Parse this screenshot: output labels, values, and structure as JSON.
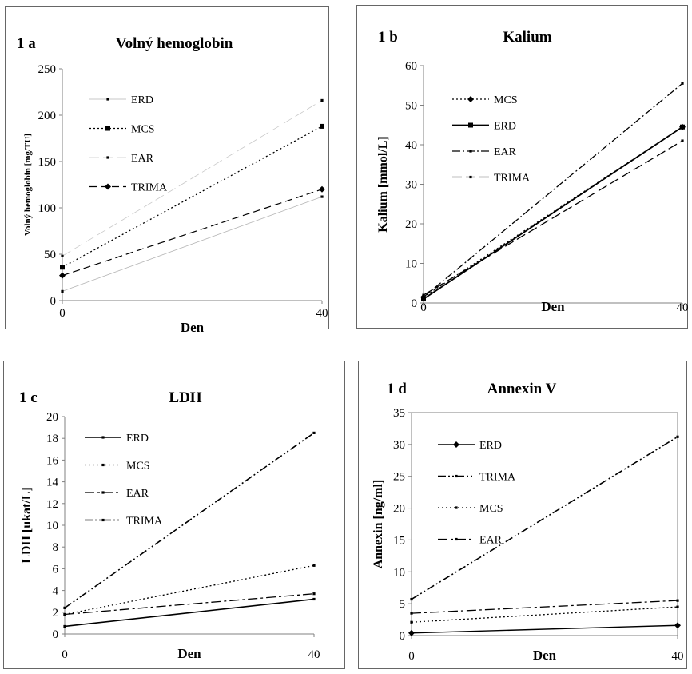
{
  "chart_data": [
    {
      "type": "line",
      "panel_label": "1 a",
      "title": "Volný hemoglobin",
      "xlabel": "Den",
      "ylabel": "Volný hemoglobin [mg/TU]",
      "x": [
        0,
        40
      ],
      "xticks": [
        "0",
        "40"
      ],
      "ylim": [
        0,
        250
      ],
      "yticks": [
        0,
        50,
        100,
        150,
        200,
        250
      ],
      "grid": false,
      "legend_position": "top-left",
      "series": [
        {
          "name": "ERD",
          "values": [
            10,
            112
          ],
          "color": "#b5b5b5"
        },
        {
          "name": "MCS",
          "values": [
            36,
            188
          ],
          "color": "#000000"
        },
        {
          "name": "EAR",
          "values": [
            48,
            216
          ],
          "color": "#c8c8c8"
        },
        {
          "name": "TRIMA",
          "values": [
            27,
            120
          ],
          "color": "#000000"
        }
      ]
    },
    {
      "type": "line",
      "panel_label": "1 b",
      "title": "Kalium",
      "xlabel": "Den",
      "ylabel": "Kalium [mmol/L]",
      "x": [
        0,
        40
      ],
      "xticks": [
        "0",
        "40"
      ],
      "ylim": [
        0,
        60
      ],
      "yticks": [
        0,
        10,
        20,
        30,
        40,
        50,
        60
      ],
      "grid": false,
      "legend_position": "top-left",
      "series": [
        {
          "name": "MCS",
          "values": [
            1.5,
            44.5
          ],
          "color": "#000000"
        },
        {
          "name": "ERD",
          "values": [
            1,
            44.5
          ],
          "color": "#000000"
        },
        {
          "name": "EAR",
          "values": [
            1.5,
            55.5
          ],
          "color": "#000000"
        },
        {
          "name": "TRIMA",
          "values": [
            2,
            41
          ],
          "color": "#000000"
        }
      ]
    },
    {
      "type": "line",
      "panel_label": "1 c",
      "title": "LDH",
      "xlabel": "Den",
      "ylabel": "LDH [ukat/L]",
      "x": [
        0,
        40
      ],
      "xticks": [
        "0",
        "40"
      ],
      "ylim": [
        0,
        20
      ],
      "yticks": [
        0,
        2,
        4,
        6,
        8,
        10,
        12,
        14,
        16,
        18,
        20
      ],
      "grid": false,
      "legend_position": "top-left",
      "series": [
        {
          "name": "ERD",
          "values": [
            0.7,
            3.2
          ],
          "color": "#000000"
        },
        {
          "name": "MCS",
          "values": [
            1.8,
            6.3
          ],
          "color": "#000000"
        },
        {
          "name": "EAR",
          "values": [
            1.8,
            3.7
          ],
          "color": "#000000"
        },
        {
          "name": "TRIMA",
          "values": [
            2.4,
            18.5
          ],
          "color": "#000000"
        }
      ]
    },
    {
      "type": "line",
      "panel_label": "1 d",
      "title": "Annexin V",
      "xlabel": "Den",
      "ylabel": "Annexin [ng/ml]",
      "x": [
        0,
        40
      ],
      "xticks": [
        "0",
        "40"
      ],
      "ylim": [
        0,
        35
      ],
      "yticks": [
        0,
        5,
        10,
        15,
        20,
        25,
        30,
        35
      ],
      "grid": false,
      "legend_position": "top-left",
      "series": [
        {
          "name": "ERD",
          "values": [
            0.4,
            1.6
          ],
          "color": "#000000"
        },
        {
          "name": "TRIMA",
          "values": [
            5.7,
            31.2
          ],
          "color": "#000000"
        },
        {
          "name": "MCS",
          "values": [
            2.1,
            4.5
          ],
          "color": "#000000"
        },
        {
          "name": "EAR",
          "values": [
            3.5,
            5.5
          ],
          "color": "#000000"
        }
      ]
    }
  ]
}
